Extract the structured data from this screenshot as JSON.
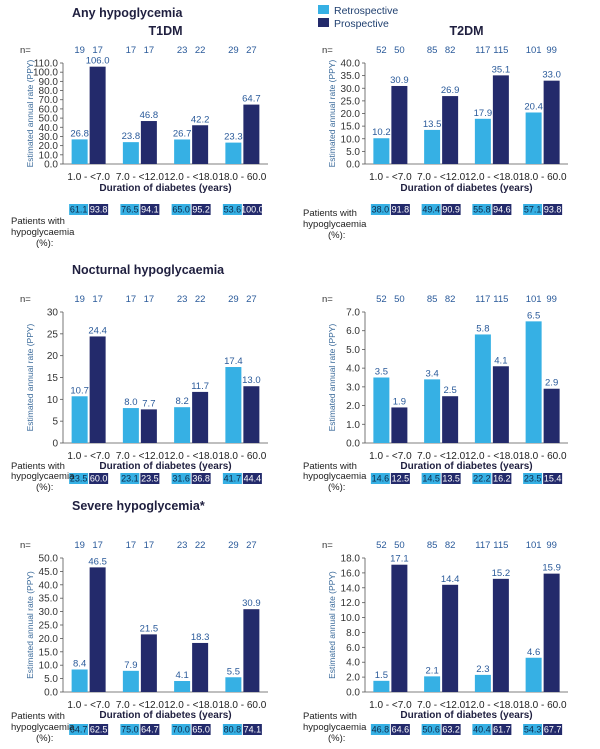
{
  "legend": {
    "retrospective": "Retrospective",
    "prospective": "Prospective",
    "colors": {
      "retrospective": "#36b0e4",
      "prospective": "#232a6b"
    }
  },
  "sections": [
    {
      "title": "Any hypoglycemia"
    },
    {
      "title": "Nocturnal hypoglycaemia"
    },
    {
      "title": "Severe hypoglycemia*"
    }
  ],
  "labels": {
    "n_prefix": "n=",
    "xlabel": "Duration of diabetes (years)",
    "ylabel": "Estimated annual rate (PPY)",
    "patients_line1": "Patients with",
    "patients_line2": "hypoglycaemia",
    "patients_line3": "(%):"
  },
  "chart_data": [
    {
      "type": "bar",
      "section": 0,
      "title": "T1DM",
      "categories": [
        "1.0 - <7.0",
        "7.0 - <12.0",
        "12.0 - <18.0",
        "18.0 - 60.0"
      ],
      "ylim": [
        0,
        110
      ],
      "yticks": [
        "0.0",
        "10.0",
        "20.0",
        "30.0",
        "40.0",
        "50.0",
        "60.0",
        "70.0",
        "80.0",
        "90.0",
        "100.0",
        "110.0"
      ],
      "series": [
        {
          "name": "Retrospective",
          "values": [
            26.8,
            23.8,
            26.7,
            23.3
          ],
          "labels": [
            "26.8",
            "23.8",
            "26.7",
            "23.3"
          ],
          "n": [
            "19",
            "17",
            "23",
            "29"
          ],
          "pct": [
            "61.1",
            "76.5",
            "65.0",
            "53.6"
          ]
        },
        {
          "name": "Prospective",
          "values": [
            106.0,
            46.8,
            42.2,
            64.7
          ],
          "labels": [
            "106.0",
            "46.8",
            "42.2",
            "64.7"
          ],
          "n": [
            "17",
            "17",
            "22",
            "27"
          ],
          "pct": [
            "93.8",
            "94.1",
            "95.2",
            "100.0"
          ]
        }
      ]
    },
    {
      "type": "bar",
      "section": 0,
      "title": "T2DM",
      "categories": [
        "1.0 - <7.0",
        "7.0 - <12.0",
        "12.0 - <18.0",
        "18.0 - 60.0"
      ],
      "ylim": [
        0,
        40
      ],
      "yticks": [
        "0.0",
        "5.0",
        "10.0",
        "15.0",
        "20.0",
        "25.0",
        "30.0",
        "35.0",
        "40.0"
      ],
      "series": [
        {
          "name": "Retrospective",
          "values": [
            10.2,
            13.5,
            17.9,
            20.4
          ],
          "labels": [
            "10.2",
            "13.5",
            "17.9",
            "20.4"
          ],
          "n": [
            "52",
            "85",
            "117",
            "101"
          ],
          "pct": [
            "38.0",
            "49.4",
            "55.8",
            "57.1"
          ]
        },
        {
          "name": "Prospective",
          "values": [
            30.9,
            26.9,
            35.1,
            33.0
          ],
          "labels": [
            "30.9",
            "26.9",
            "35.1",
            "33.0"
          ],
          "n": [
            "50",
            "82",
            "115",
            "99"
          ],
          "pct": [
            "91.8",
            "90.9",
            "94.6",
            "93.8"
          ]
        }
      ]
    },
    {
      "type": "bar",
      "section": 1,
      "title": "",
      "categories": [
        "1.0 - <7.0",
        "7.0 - <12.0",
        "12.0 - <18.0",
        "18.0 - 60.0"
      ],
      "ylim": [
        0,
        30
      ],
      "yticks": [
        "0",
        "5",
        "10",
        "15",
        "20",
        "25",
        "30"
      ],
      "series": [
        {
          "name": "Retrospective",
          "values": [
            10.7,
            8.0,
            8.2,
            17.4
          ],
          "labels": [
            "10.7",
            "8.0",
            "8.2",
            "17.4"
          ],
          "n": [
            "19",
            "17",
            "23",
            "29"
          ],
          "pct": [
            "23.5",
            "23.1",
            "31.6",
            "41.7"
          ]
        },
        {
          "name": "Prospective",
          "values": [
            24.4,
            7.7,
            11.7,
            13.0
          ],
          "labels": [
            "24.4",
            "7.7",
            "11.7",
            "13.0"
          ],
          "n": [
            "17",
            "17",
            "22",
            "27"
          ],
          "pct": [
            "60.0",
            "23.5",
            "36.8",
            "44.4"
          ]
        }
      ]
    },
    {
      "type": "bar",
      "section": 1,
      "title": "",
      "categories": [
        "1.0 - <7.0",
        "7.0 - <12.0",
        "12.0 - <18.0",
        "18.0 - 60.0"
      ],
      "ylim": [
        0,
        7
      ],
      "yticks": [
        "0.0",
        "1.0",
        "2.0",
        "3.0",
        "4.0",
        "5.0",
        "6.0",
        "7.0"
      ],
      "series": [
        {
          "name": "Retrospective",
          "values": [
            3.5,
            3.4,
            5.8,
            6.5
          ],
          "labels": [
            "3.5",
            "3.4",
            "5.8",
            "6.5"
          ],
          "n": [
            "52",
            "85",
            "117",
            "101"
          ],
          "pct": [
            "14.6",
            "14.5",
            "22.2",
            "23.5"
          ]
        },
        {
          "name": "Prospective",
          "values": [
            1.9,
            2.5,
            4.1,
            2.9
          ],
          "labels": [
            "1.9",
            "2.5",
            "4.1",
            "2.9"
          ],
          "n": [
            "50",
            "82",
            "115",
            "99"
          ],
          "pct": [
            "12.5",
            "13.5",
            "16.2",
            "15.4"
          ]
        }
      ]
    },
    {
      "type": "bar",
      "section": 2,
      "title": "",
      "categories": [
        "1.0 - <7.0",
        "7.0 - <12.0",
        "12.0 - <18.0",
        "18.0 - 60.0"
      ],
      "ylim": [
        0,
        50
      ],
      "yticks": [
        "0.0",
        "5.0",
        "10.0",
        "15.0",
        "20.0",
        "25.0",
        "30.0",
        "35.0",
        "40.0",
        "45.0",
        "50.0"
      ],
      "series": [
        {
          "name": "Retrospective",
          "values": [
            8.4,
            7.9,
            4.1,
            5.5
          ],
          "labels": [
            "8.4",
            "7.9",
            "4.1",
            "5.5"
          ],
          "n": [
            "19",
            "17",
            "23",
            "29"
          ],
          "pct": [
            "64.7",
            "75.0",
            "70.0",
            "80.8"
          ]
        },
        {
          "name": "Prospective",
          "values": [
            46.5,
            21.5,
            18.3,
            30.9
          ],
          "labels": [
            "46.5",
            "21.5",
            "18.3",
            "30.9"
          ],
          "n": [
            "17",
            "17",
            "22",
            "27"
          ],
          "pct": [
            "62.5",
            "64.7",
            "65.0",
            "74.1"
          ]
        }
      ]
    },
    {
      "type": "bar",
      "section": 2,
      "title": "",
      "categories": [
        "1.0 - <7.0",
        "7.0 - <12.0",
        "12.0 - <18.0",
        "18.0 - 60.0"
      ],
      "ylim": [
        0,
        18
      ],
      "yticks": [
        "0.0",
        "2.0",
        "4.0",
        "6.0",
        "8.0",
        "10.0",
        "12.0",
        "14.0",
        "16.0",
        "18.0"
      ],
      "series": [
        {
          "name": "Retrospective",
          "values": [
            1.5,
            2.1,
            2.3,
            4.6
          ],
          "labels": [
            "1.5",
            "2.1",
            "2.3",
            "4.6"
          ],
          "n": [
            "52",
            "85",
            "117",
            "101"
          ],
          "pct": [
            "46.8",
            "50.6",
            "40.4",
            "54.3"
          ]
        },
        {
          "name": "Prospective",
          "values": [
            17.1,
            14.4,
            15.2,
            15.9
          ],
          "labels": [
            "17.1",
            "14.4",
            "15.2",
            "15.9"
          ],
          "n": [
            "50",
            "82",
            "115",
            "99"
          ],
          "pct": [
            "64.6",
            "63.2",
            "61.7",
            "67.7"
          ]
        }
      ]
    }
  ]
}
